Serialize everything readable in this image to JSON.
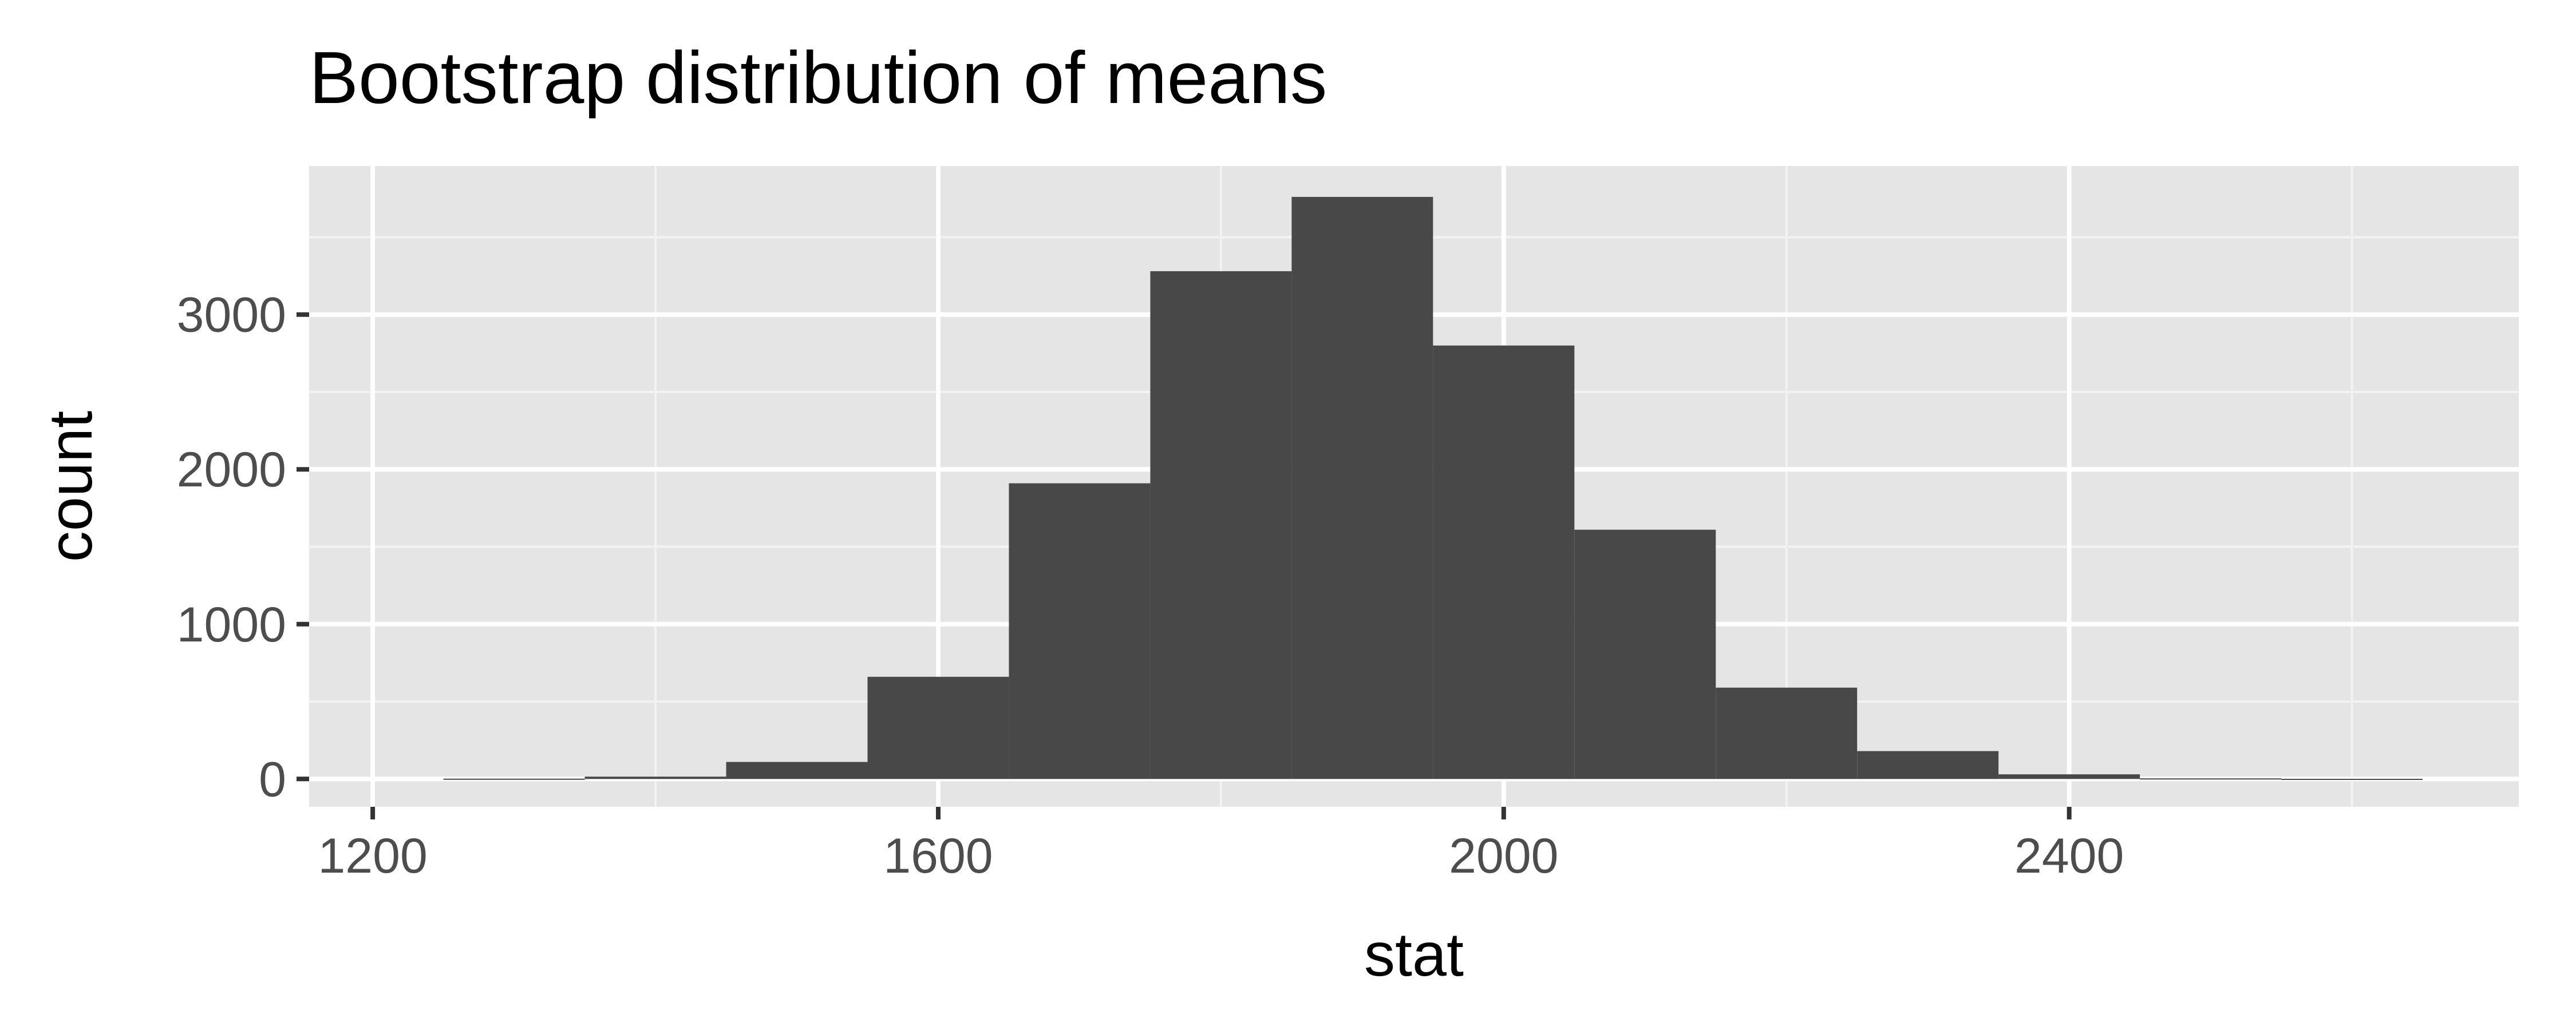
{
  "chart_data": {
    "type": "bar",
    "subtype": "histogram",
    "title": "Bootstrap distribution of means",
    "xlabel": "stat",
    "ylabel": "count",
    "xlim": [
      1155,
      2718
    ],
    "ylim": [
      -180,
      3960
    ],
    "x_ticks": [
      1200,
      1600,
      2000,
      2400
    ],
    "x_tick_labels": [
      "1200",
      "1600",
      "2000",
      "2400"
    ],
    "y_ticks": [
      0,
      1000,
      2000,
      3000
    ],
    "y_tick_labels": [
      "0",
      "1000",
      "2000",
      "3000"
    ],
    "bin_width": 100,
    "bins": [
      {
        "x_start": 1250,
        "x_end": 1350,
        "count": 2
      },
      {
        "x_start": 1350,
        "x_end": 1450,
        "count": 15
      },
      {
        "x_start": 1450,
        "x_end": 1550,
        "count": 110
      },
      {
        "x_start": 1550,
        "x_end": 1650,
        "count": 660
      },
      {
        "x_start": 1650,
        "x_end": 1750,
        "count": 1910
      },
      {
        "x_start": 1750,
        "x_end": 1850,
        "count": 3280
      },
      {
        "x_start": 1850,
        "x_end": 1950,
        "count": 3760
      },
      {
        "x_start": 1950,
        "x_end": 2050,
        "count": 2800
      },
      {
        "x_start": 2050,
        "x_end": 2150,
        "count": 1610
      },
      {
        "x_start": 2150,
        "x_end": 2250,
        "count": 590
      },
      {
        "x_start": 2250,
        "x_end": 2350,
        "count": 180
      },
      {
        "x_start": 2350,
        "x_end": 2450,
        "count": 30
      },
      {
        "x_start": 2450,
        "x_end": 2550,
        "count": 4
      },
      {
        "x_start": 2550,
        "x_end": 2650,
        "count": 1
      }
    ],
    "grid": true,
    "legend": "none",
    "colors": {
      "bar": "#484848",
      "panel_background": "#e5e5e5",
      "grid_major": "#ffffff",
      "grid_minor": "#f2f2f2",
      "tick": "#333333"
    }
  }
}
